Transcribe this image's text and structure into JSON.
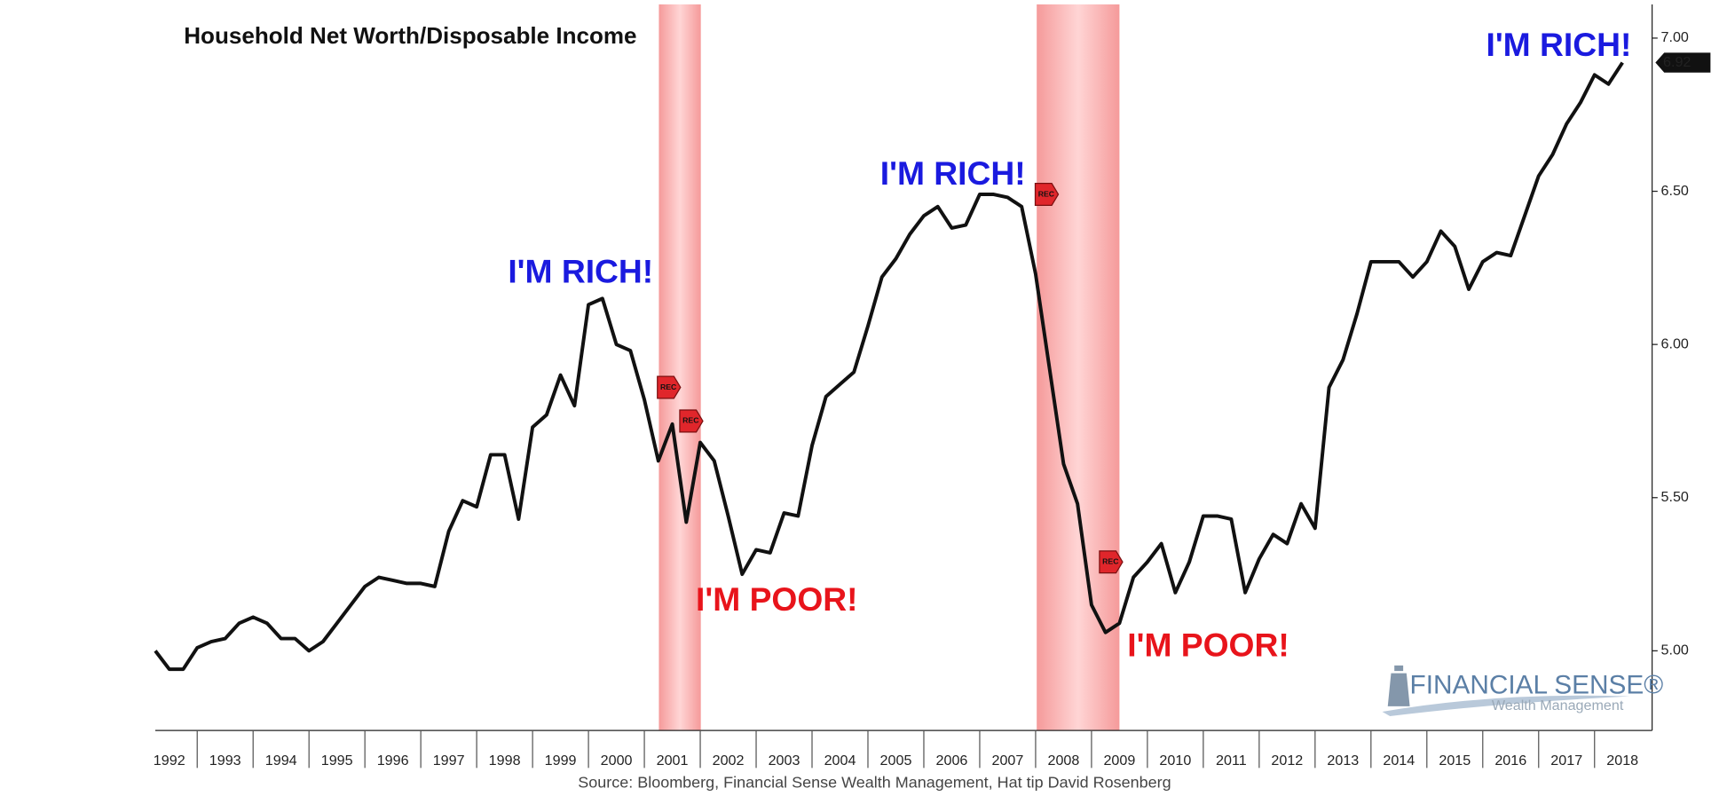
{
  "chart_data": {
    "type": "line",
    "title": "Household Net Worth/Disposable Income",
    "source": "Source: Bloomberg, Financial Sense Wealth Management, Hat tip David Rosenberg",
    "xlim": [
      1992.25,
      2019.03
    ],
    "ylim": [
      4.74,
      7.11
    ],
    "xticks": [
      1992,
      1993,
      1994,
      1995,
      1996,
      1997,
      1998,
      1999,
      2000,
      2001,
      2002,
      2003,
      2004,
      2005,
      2006,
      2007,
      2008,
      2009,
      2010,
      2011,
      2012,
      2013,
      2014,
      2015,
      2016,
      2017,
      2018
    ],
    "yticks": [
      {
        "value": 5,
        "label": "5.00"
      },
      {
        "value": 5.5,
        "label": "5.50"
      },
      {
        "value": 6,
        "label": "6.00"
      },
      {
        "value": 6.5,
        "label": "6.50"
      },
      {
        "value": 7,
        "label": "7.00"
      }
    ],
    "series": [
      {
        "color": "#111111",
        "x": [
          1992.25,
          1992.5,
          1992.75,
          1993,
          1993.25,
          1993.5,
          1993.75,
          1994,
          1994.25,
          1994.5,
          1994.75,
          1995,
          1995.25,
          1995.5,
          1995.75,
          1996,
          1996.25,
          1996.5,
          1996.75,
          1997,
          1997.25,
          1997.5,
          1997.75,
          1998,
          1998.25,
          1998.5,
          1998.75,
          1999,
          1999.25,
          1999.5,
          1999.75,
          2000,
          2000.25,
          2000.5,
          2000.75,
          2001,
          2001.25,
          2001.5,
          2001.75,
          2002,
          2002.25,
          2002.5,
          2002.75,
          2003,
          2003.25,
          2003.5,
          2003.75,
          2004,
          2004.25,
          2004.5,
          2004.75,
          2005,
          2005.25,
          2005.5,
          2005.75,
          2006,
          2006.25,
          2006.5,
          2006.75,
          2007,
          2007.25,
          2007.5,
          2007.75,
          2008,
          2008.25,
          2008.5,
          2008.75,
          2009,
          2009.25,
          2009.5,
          2009.75,
          2010,
          2010.25,
          2010.5,
          2010.75,
          2011,
          2011.25,
          2011.5,
          2011.75,
          2012,
          2012.25,
          2012.5,
          2012.75,
          2013,
          2013.25,
          2013.5,
          2013.75,
          2014,
          2014.25,
          2014.5,
          2014.75,
          2015,
          2015.25,
          2015.5,
          2015.75,
          2016,
          2016.25,
          2016.5,
          2016.75,
          2017,
          2017.25,
          2017.5,
          2017.75,
          2018,
          2018.25,
          2018.5
        ],
        "values": [
          5.0,
          4.94,
          4.94,
          5.01,
          5.03,
          5.04,
          5.09,
          5.11,
          5.09,
          5.04,
          5.04,
          5.0,
          5.03,
          5.09,
          5.15,
          5.21,
          5.24,
          5.23,
          5.22,
          5.22,
          5.21,
          5.39,
          5.49,
          5.47,
          5.64,
          5.64,
          5.43,
          5.73,
          5.77,
          5.9,
          5.8,
          6.13,
          6.15,
          6.0,
          5.98,
          5.82,
          5.62,
          5.74,
          5.42,
          5.68,
          5.62,
          5.44,
          5.25,
          5.33,
          5.32,
          5.45,
          5.44,
          5.67,
          5.83,
          5.87,
          5.91,
          6.06,
          6.22,
          6.28,
          6.36,
          6.42,
          6.45,
          6.38,
          6.39,
          6.49,
          6.49,
          6.48,
          6.45,
          6.23,
          5.92,
          5.61,
          5.48,
          5.15,
          5.06,
          5.09,
          5.24,
          5.29,
          5.35,
          5.19,
          5.29,
          5.44,
          5.44,
          5.43,
          5.19,
          5.3,
          5.38,
          5.35,
          5.48,
          5.4,
          5.86,
          5.95,
          6.1,
          6.27,
          6.27,
          6.27,
          6.22,
          6.27,
          6.37,
          6.32,
          6.18,
          6.27,
          6.3,
          6.29,
          6.42,
          6.55,
          6.62,
          6.72,
          6.79,
          6.88,
          6.85,
          6.92
        ]
      }
    ],
    "recessions": [
      [
        2001.26,
        2002.01
      ],
      [
        2008.02,
        2009.5
      ]
    ],
    "annotations": [
      {
        "text": "I'M RICH!",
        "x": 1999.86,
        "y": 6.23,
        "color": "#1a1adf"
      },
      {
        "text": "I'M POOR!",
        "x": 2003.37,
        "y": 5.16,
        "color": "#e8141b"
      },
      {
        "text": "I'M RICH!",
        "x": 2006.52,
        "y": 6.55,
        "color": "#1a1adf"
      },
      {
        "text": "I'M POOR!",
        "x": 2011.09,
        "y": 5.01,
        "color": "#e8141b"
      },
      {
        "text": "I'M RICH!",
        "x": 2017.36,
        "y": 6.97,
        "color": "#1a1adf"
      }
    ],
    "rec_markers": [
      {
        "text": "REC",
        "x": 2001.43,
        "y": 5.86
      },
      {
        "text": "REC",
        "x": 2001.83,
        "y": 5.75
      },
      {
        "text": "REC",
        "x": 2008.19,
        "y": 6.49
      },
      {
        "text": "REC",
        "x": 2009.34,
        "y": 5.29
      }
    ],
    "logo": {
      "name": "FINANCIAL SENSE®",
      "tagline": "Wealth Management"
    }
  }
}
